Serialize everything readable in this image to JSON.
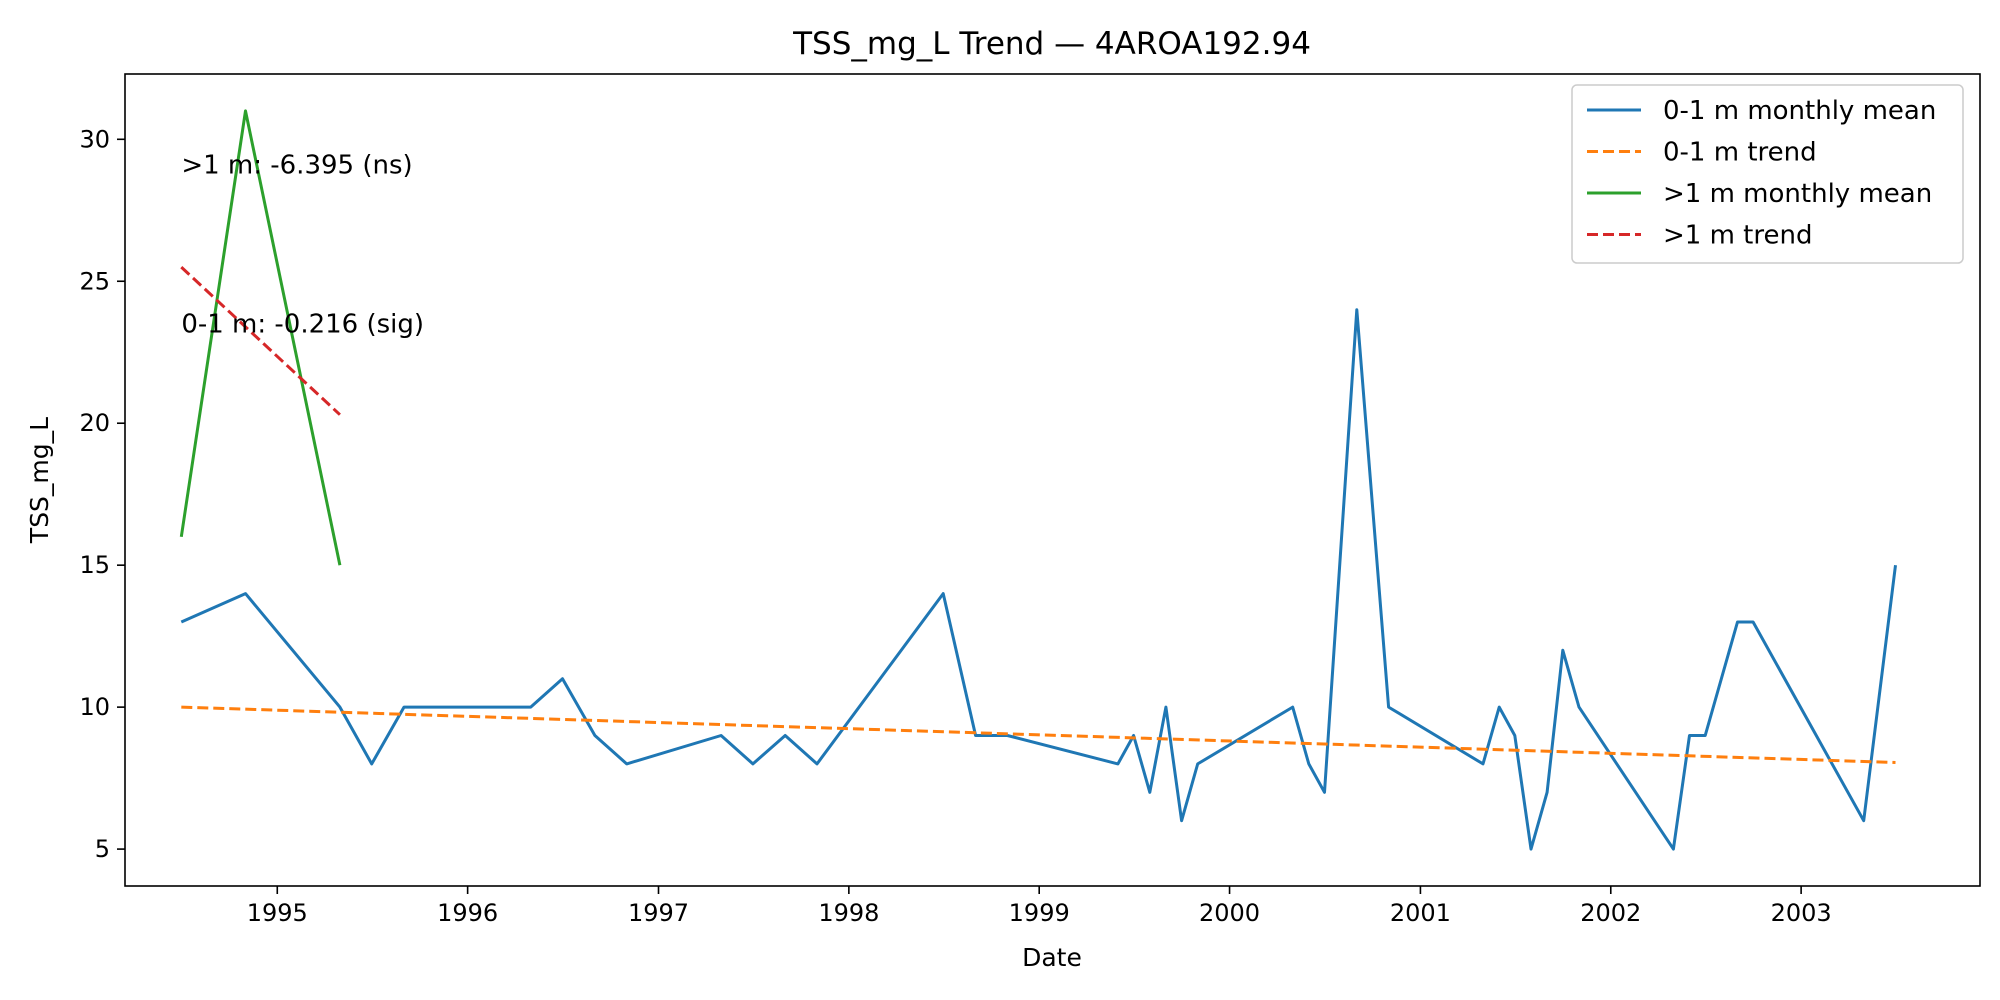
{
  "chart_data": {
    "type": "line",
    "title": "TSS_mg_L Trend — 4AROA192.94",
    "xlabel": "Date",
    "ylabel": "TSS_mg_L",
    "xlim": [
      "1994-03-15",
      "2003-12-10"
    ],
    "ylim": [
      3.7,
      32.3
    ],
    "x_ticks": [
      {
        "date": "1995-01-01",
        "label": "1995"
      },
      {
        "date": "1996-01-01",
        "label": "1996"
      },
      {
        "date": "1997-01-01",
        "label": "1997"
      },
      {
        "date": "1998-01-01",
        "label": "1998"
      },
      {
        "date": "1999-01-01",
        "label": "1999"
      },
      {
        "date": "2000-01-01",
        "label": "2000"
      },
      {
        "date": "2001-01-01",
        "label": "2001"
      },
      {
        "date": "2002-01-01",
        "label": "2002"
      },
      {
        "date": "2003-01-01",
        "label": "2003"
      }
    ],
    "y_ticks": [
      5,
      10,
      15,
      20,
      25,
      30
    ],
    "grid": false,
    "legend_position": "top-right",
    "series": [
      {
        "name": "0-1 m monthly mean",
        "style": "solid",
        "color": "#1f77b4",
        "points": [
          [
            "1994-07-01",
            13
          ],
          [
            "1994-11-01",
            14
          ],
          [
            "1995-05-01",
            10
          ],
          [
            "1995-07-01",
            8
          ],
          [
            "1995-09-01",
            10
          ],
          [
            "1996-05-01",
            10
          ],
          [
            "1996-07-01",
            11
          ],
          [
            "1996-09-01",
            9
          ],
          [
            "1996-11-01",
            8
          ],
          [
            "1997-05-01",
            9
          ],
          [
            "1997-07-01",
            8
          ],
          [
            "1997-09-01",
            9
          ],
          [
            "1997-11-01",
            8
          ],
          [
            "1998-07-01",
            14
          ],
          [
            "1998-09-01",
            9
          ],
          [
            "1998-11-01",
            9
          ],
          [
            "1999-06-01",
            8
          ],
          [
            "1999-07-01",
            9
          ],
          [
            "1999-08-01",
            7
          ],
          [
            "1999-09-01",
            10
          ],
          [
            "1999-10-01",
            6
          ],
          [
            "1999-11-01",
            8
          ],
          [
            "2000-05-01",
            10
          ],
          [
            "2000-06-01",
            8
          ],
          [
            "2000-07-01",
            7
          ],
          [
            "2000-09-01",
            24
          ],
          [
            "2000-11-01",
            10
          ],
          [
            "2001-05-01",
            8
          ],
          [
            "2001-06-01",
            10
          ],
          [
            "2001-07-01",
            9
          ],
          [
            "2001-08-01",
            5
          ],
          [
            "2001-09-01",
            7
          ],
          [
            "2001-10-01",
            12
          ],
          [
            "2001-11-01",
            10
          ],
          [
            "2002-05-01",
            5
          ],
          [
            "2002-06-01",
            9
          ],
          [
            "2002-07-01",
            9
          ],
          [
            "2002-09-01",
            13
          ],
          [
            "2002-10-01",
            13
          ],
          [
            "2003-05-01",
            6
          ],
          [
            "2003-07-01",
            15
          ]
        ]
      },
      {
        "name": "0-1 m trend",
        "style": "dashed",
        "color": "#ff7f0e",
        "points": [
          [
            "1994-07-01",
            10.0
          ],
          [
            "2003-07-01",
            8.05
          ]
        ]
      },
      {
        "name": ">1 m monthly mean",
        "style": "solid",
        "color": "#2ca02c",
        "points": [
          [
            "1994-07-01",
            16
          ],
          [
            "1994-11-01",
            31
          ],
          [
            "1995-05-01",
            15
          ]
        ]
      },
      {
        "name": ">1 m trend",
        "style": "dashed",
        "color": "#d62728",
        "points": [
          [
            "1994-07-01",
            25.5
          ],
          [
            "1995-05-01",
            20.3
          ]
        ]
      }
    ],
    "annotations": [
      {
        "text": ">1 m: -6.395 (ns)",
        "date": "1994-07-01",
        "y": 28.8
      },
      {
        "text": "0-1 m: -0.216 (sig)",
        "date": "1994-07-01",
        "y": 23.2
      }
    ]
  }
}
